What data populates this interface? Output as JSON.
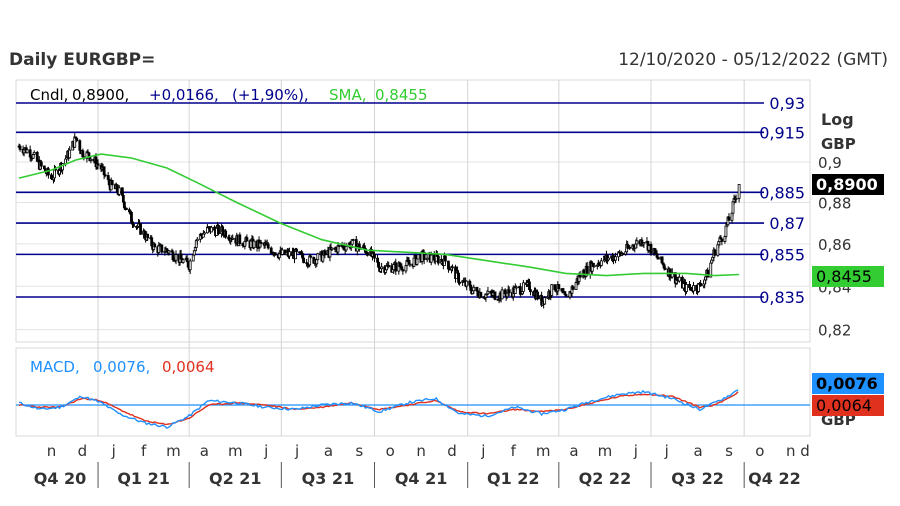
{
  "header": {
    "title": "Daily EURGBP=",
    "date_range": "12/10/2020 - 05/12/2022 (GMT)"
  },
  "legend": {
    "cndl_label": "Cndl,",
    "close_value": "0,8900,",
    "change_abs": "+0,0166,",
    "change_pct": "(+1,90%),",
    "sma_label": "SMA,",
    "sma_value": "0,8455"
  },
  "axis": {
    "scale_label": "Log",
    "currency_label": "GBP",
    "ticks": [
      "0,9",
      "0,88",
      "0,86",
      "0,84",
      "0,82"
    ],
    "last_price_tag": "0,8900",
    "sma_tag": "0,8455",
    "macd_tag": "0,0076",
    "signal_tag": "0,0064",
    "macd_axis_label": "GBP"
  },
  "hlines": [
    "0,93",
    "0,915",
    "0,885",
    "0,87",
    "0,855",
    "0,835"
  ],
  "macd_legend": {
    "macd_label": "MACD,",
    "macd_value": "0,0076,",
    "signal_value": "0,0064"
  },
  "xaxis": {
    "months": [
      "n",
      "d",
      "j",
      "f",
      "m",
      "a",
      "m",
      "j",
      "j",
      "a",
      "s",
      "o",
      "n",
      "d",
      "j",
      "f",
      "m",
      "a",
      "m",
      "j",
      "j",
      "a",
      "s",
      "o",
      "n",
      "d"
    ],
    "quarters": [
      "Q4 20",
      "Q1 21",
      "Q2 21",
      "Q3 21",
      "Q4 21",
      "Q1 22",
      "Q2 22",
      "Q3 22",
      "Q4 22"
    ]
  },
  "colors": {
    "price": "#000000",
    "sma": "#33cc33",
    "hline": "#00008b",
    "macd": "#1e90ff",
    "signal": "#e0301e",
    "zero": "#1e90ff",
    "text_blue": "#00008b"
  },
  "chart_data": [
    {
      "type": "line",
      "title": "Daily EURGBP=",
      "scale": "log",
      "ylim": [
        0.815,
        0.935
      ],
      "x_start": "2020-10-12",
      "x_end": "2022-12-05",
      "series": [
        {
          "name": "Cndl",
          "style": "candlestick (approx. closes)",
          "dates": [
            "2020-10-15",
            "2020-10-26",
            "2020-11-05",
            "2020-11-16",
            "2020-11-25",
            "2020-12-03",
            "2020-12-10",
            "2020-12-16",
            "2020-12-24",
            "2021-01-04",
            "2021-01-12",
            "2021-01-22",
            "2021-02-03",
            "2021-02-15",
            "2021-02-26",
            "2021-03-10",
            "2021-03-22",
            "2021-04-01",
            "2021-04-08",
            "2021-04-20",
            "2021-05-05",
            "2021-05-18",
            "2021-06-01",
            "2021-06-15",
            "2021-06-30",
            "2021-07-15",
            "2021-07-28",
            "2021-08-10",
            "2021-08-25",
            "2021-09-08",
            "2021-09-24",
            "2021-10-06",
            "2021-10-20",
            "2021-11-03",
            "2021-11-16",
            "2021-11-30",
            "2021-12-10",
            "2021-12-24",
            "2022-01-06",
            "2022-01-20",
            "2022-02-03",
            "2022-02-17",
            "2022-03-03",
            "2022-03-15",
            "2022-03-28",
            "2022-04-08",
            "2022-04-22",
            "2022-05-04",
            "2022-05-18",
            "2022-06-01",
            "2022-06-15",
            "2022-06-24",
            "2022-07-08",
            "2022-07-22",
            "2022-08-05",
            "2022-08-18",
            "2022-08-26",
            "2022-09-02",
            "2022-09-12",
            "2022-09-19",
            "2022-09-26"
          ],
          "values": [
            0.908,
            0.905,
            0.898,
            0.892,
            0.898,
            0.904,
            0.912,
            0.905,
            0.903,
            0.897,
            0.889,
            0.885,
            0.872,
            0.865,
            0.858,
            0.857,
            0.853,
            0.85,
            0.862,
            0.867,
            0.866,
            0.862,
            0.86,
            0.859,
            0.855,
            0.855,
            0.852,
            0.854,
            0.858,
            0.86,
            0.857,
            0.849,
            0.849,
            0.85,
            0.854,
            0.853,
            0.852,
            0.843,
            0.838,
            0.836,
            0.836,
            0.838,
            0.84,
            0.833,
            0.84,
            0.834,
            0.845,
            0.85,
            0.853,
            0.855,
            0.86,
            0.862,
            0.853,
            0.845,
            0.839,
            0.84,
            0.846,
            0.857,
            0.866,
            0.876,
            0.89
          ]
        },
        {
          "name": "SMA",
          "dates": [
            "2020-10-15",
            "2020-11-16",
            "2020-12-10",
            "2021-01-04",
            "2021-02-03",
            "2021-03-10",
            "2021-04-08",
            "2021-05-18",
            "2021-06-30",
            "2021-08-10",
            "2021-09-24",
            "2021-11-03",
            "2021-12-10",
            "2022-01-20",
            "2022-03-03",
            "2022-04-08",
            "2022-05-18",
            "2022-06-24",
            "2022-08-05",
            "2022-09-02",
            "2022-09-26"
          ],
          "values": [
            0.892,
            0.896,
            0.901,
            0.904,
            0.902,
            0.897,
            0.89,
            0.88,
            0.87,
            0.862,
            0.857,
            0.856,
            0.855,
            0.852,
            0.849,
            0.846,
            0.845,
            0.846,
            0.846,
            0.845,
            0.8455
          ]
        }
      ]
    },
    {
      "type": "line",
      "title": "MACD",
      "series": [
        {
          "name": "MACD",
          "dates": [
            "2020-10-15",
            "2020-11-05",
            "2020-11-25",
            "2020-12-16",
            "2021-01-04",
            "2021-01-22",
            "2021-02-15",
            "2021-03-10",
            "2021-04-01",
            "2021-04-20",
            "2021-05-18",
            "2021-06-15",
            "2021-07-15",
            "2021-08-10",
            "2021-09-08",
            "2021-10-06",
            "2021-11-03",
            "2021-11-30",
            "2021-12-24",
            "2022-01-20",
            "2022-02-17",
            "2022-03-15",
            "2022-04-08",
            "2022-05-04",
            "2022-06-01",
            "2022-06-24",
            "2022-07-22",
            "2022-08-18",
            "2022-09-02",
            "2022-09-19",
            "2022-09-26"
          ],
          "values": [
            0.001,
            -0.002,
            -0.001,
            0.004,
            0.001,
            -0.004,
            -0.008,
            -0.01,
            -0.005,
            0.002,
            0.001,
            -0.001,
            -0.002,
            0.0,
            0.001,
            -0.003,
            0.001,
            0.003,
            -0.004,
            -0.005,
            -0.001,
            -0.004,
            -0.002,
            0.002,
            0.005,
            0.006,
            0.003,
            -0.002,
            0.001,
            0.005,
            0.0076
          ]
        },
        {
          "name": "Signal",
          "dates": [
            "2020-10-15",
            "2020-11-05",
            "2020-11-25",
            "2020-12-16",
            "2021-01-04",
            "2021-01-22",
            "2021-02-15",
            "2021-03-10",
            "2021-04-01",
            "2021-04-20",
            "2021-05-18",
            "2021-06-15",
            "2021-07-15",
            "2021-08-10",
            "2021-09-08",
            "2021-10-06",
            "2021-11-03",
            "2021-11-30",
            "2021-12-24",
            "2022-01-20",
            "2022-02-17",
            "2022-03-15",
            "2022-04-08",
            "2022-05-04",
            "2022-06-01",
            "2022-06-24",
            "2022-07-22",
            "2022-08-18",
            "2022-09-02",
            "2022-09-19",
            "2022-09-26"
          ],
          "values": [
            0.0,
            -0.001,
            -0.001,
            0.003,
            0.002,
            -0.002,
            -0.007,
            -0.009,
            -0.006,
            0.0,
            0.001,
            0.0,
            -0.002,
            -0.001,
            0.001,
            -0.002,
            0.0,
            0.002,
            -0.003,
            -0.004,
            -0.002,
            -0.003,
            -0.002,
            0.001,
            0.004,
            0.005,
            0.004,
            -0.001,
            0.0,
            0.004,
            0.0064
          ]
        }
      ]
    }
  ]
}
